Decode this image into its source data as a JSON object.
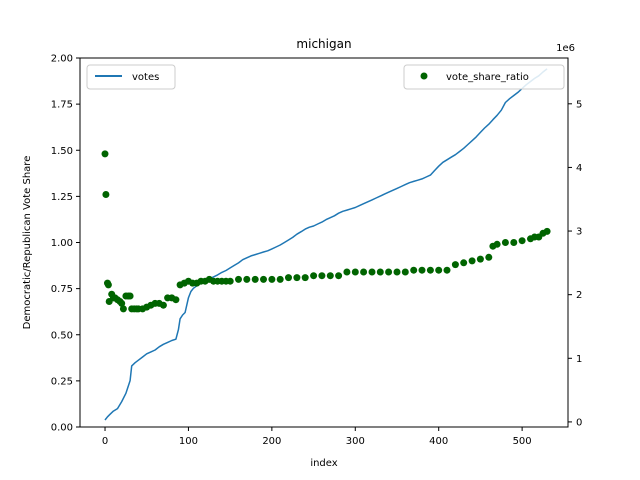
{
  "chart_data": {
    "type": "line+scatter",
    "title": "michigan",
    "xlabel": "index",
    "ylabel": "Democratic/Republican Vote Share",
    "y2_offset_label": "1e6",
    "xlim": [
      -30,
      555
    ],
    "ylim": [
      0,
      2.0
    ],
    "y2lim": [
      -0.08,
      5.72
    ],
    "x_ticks": [
      0,
      100,
      200,
      300,
      400,
      500
    ],
    "y_ticks": [
      "0.00",
      "0.25",
      "0.50",
      "0.75",
      "1.00",
      "1.25",
      "1.50",
      "1.75",
      "2.00"
    ],
    "y2_ticks": [
      0,
      1,
      2,
      3,
      4,
      5
    ],
    "grid": false,
    "legend_left": {
      "placement": "upper left",
      "entries": [
        "votes"
      ]
    },
    "legend_right": {
      "placement": "upper right",
      "entries": [
        "vote_share_ratio"
      ]
    },
    "colors": {
      "votes": "#1f77b4",
      "vote_share_ratio": "#006400"
    },
    "series": [
      {
        "name": "votes",
        "axis": "right",
        "kind": "line",
        "x": [
          0,
          3,
          6,
          10,
          15,
          20,
          25,
          30,
          32,
          36,
          40,
          45,
          50,
          55,
          60,
          65,
          70,
          75,
          80,
          85,
          88,
          90,
          93,
          96,
          100,
          103,
          106,
          110,
          115,
          120,
          125,
          130,
          135,
          140,
          145,
          150,
          155,
          160,
          165,
          170,
          175,
          180,
          185,
          190,
          195,
          200,
          205,
          210,
          215,
          220,
          225,
          230,
          235,
          240,
          245,
          250,
          255,
          260,
          265,
          270,
          275,
          280,
          285,
          290,
          295,
          300,
          305,
          310,
          315,
          320,
          325,
          330,
          335,
          340,
          345,
          350,
          355,
          360,
          365,
          370,
          375,
          380,
          385,
          390,
          395,
          400,
          405,
          410,
          415,
          420,
          425,
          430,
          435,
          440,
          445,
          450,
          455,
          460,
          465,
          470,
          475,
          480,
          485,
          490,
          495,
          500,
          505,
          510,
          515,
          520,
          525,
          530
        ],
        "values": [
          0.03,
          0.08,
          0.12,
          0.17,
          0.21,
          0.32,
          0.45,
          0.65,
          0.88,
          0.93,
          0.97,
          1.02,
          1.07,
          1.1,
          1.13,
          1.18,
          1.22,
          1.25,
          1.28,
          1.3,
          1.45,
          1.62,
          1.68,
          1.72,
          1.95,
          2.05,
          2.1,
          2.14,
          2.18,
          2.22,
          2.25,
          2.28,
          2.31,
          2.35,
          2.38,
          2.42,
          2.46,
          2.5,
          2.55,
          2.58,
          2.61,
          2.63,
          2.65,
          2.67,
          2.69,
          2.72,
          2.75,
          2.78,
          2.82,
          2.86,
          2.9,
          2.95,
          2.99,
          3.03,
          3.06,
          3.08,
          3.11,
          3.14,
          3.18,
          3.21,
          3.24,
          3.28,
          3.31,
          3.33,
          3.35,
          3.37,
          3.4,
          3.43,
          3.46,
          3.49,
          3.52,
          3.55,
          3.58,
          3.61,
          3.64,
          3.67,
          3.7,
          3.73,
          3.76,
          3.78,
          3.8,
          3.82,
          3.85,
          3.88,
          3.95,
          4.02,
          4.08,
          4.12,
          4.16,
          4.2,
          4.25,
          4.3,
          4.36,
          4.42,
          4.48,
          4.55,
          4.62,
          4.68,
          4.75,
          4.82,
          4.9,
          5.02,
          5.08,
          5.13,
          5.18,
          5.24,
          5.3,
          5.35,
          5.4,
          5.44,
          5.5,
          5.55
        ]
      },
      {
        "name": "vote_share_ratio",
        "axis": "left",
        "kind": "scatter",
        "x": [
          0,
          1,
          3,
          4,
          5,
          8,
          10,
          12,
          15,
          18,
          20,
          22,
          25,
          28,
          30,
          32,
          35,
          38,
          40,
          45,
          50,
          55,
          60,
          65,
          70,
          75,
          80,
          85,
          90,
          95,
          100,
          105,
          110,
          115,
          120,
          125,
          130,
          135,
          140,
          145,
          150,
          160,
          170,
          180,
          190,
          200,
          210,
          220,
          230,
          240,
          250,
          260,
          270,
          280,
          290,
          300,
          310,
          320,
          330,
          340,
          350,
          360,
          370,
          380,
          390,
          400,
          410,
          420,
          430,
          440,
          450,
          460,
          465,
          470,
          480,
          490,
          500,
          510,
          515,
          520,
          525,
          530
        ],
        "values": [
          1.48,
          1.26,
          0.78,
          0.77,
          0.68,
          0.72,
          0.7,
          0.7,
          0.69,
          0.68,
          0.67,
          0.64,
          0.71,
          0.71,
          0.71,
          0.64,
          0.64,
          0.64,
          0.64,
          0.64,
          0.65,
          0.66,
          0.67,
          0.67,
          0.66,
          0.7,
          0.7,
          0.69,
          0.77,
          0.78,
          0.79,
          0.78,
          0.78,
          0.79,
          0.79,
          0.8,
          0.79,
          0.79,
          0.79,
          0.79,
          0.79,
          0.8,
          0.8,
          0.8,
          0.8,
          0.8,
          0.8,
          0.81,
          0.81,
          0.81,
          0.82,
          0.82,
          0.82,
          0.82,
          0.84,
          0.84,
          0.84,
          0.84,
          0.84,
          0.84,
          0.84,
          0.84,
          0.85,
          0.85,
          0.85,
          0.85,
          0.85,
          0.88,
          0.89,
          0.9,
          0.91,
          0.92,
          0.98,
          0.99,
          1.0,
          1.0,
          1.01,
          1.02,
          1.03,
          1.03,
          1.05,
          1.06
        ]
      }
    ]
  }
}
